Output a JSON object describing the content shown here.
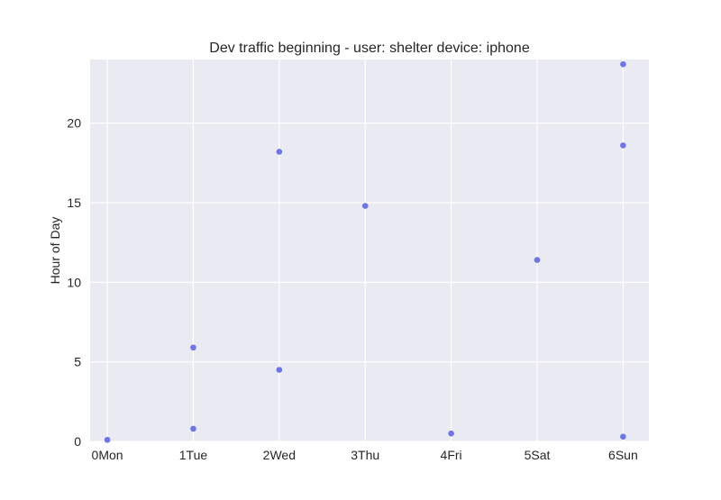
{
  "chart_data": {
    "type": "scatter",
    "title": "Dev traffic beginning - user: shelter device: iphone",
    "xlabel": "",
    "ylabel": "Hour of Day",
    "x_categories": [
      "0Mon",
      "1Tue",
      "2Wed",
      "3Thu",
      "4Fri",
      "5Sat",
      "6Sun"
    ],
    "xlim": [
      -0.2,
      6.3
    ],
    "ylim": [
      0,
      24
    ],
    "yticks": [
      0,
      5,
      10,
      15,
      20
    ],
    "grid": true,
    "background_color": "#eaeaf2",
    "grid_color": "#ffffff",
    "point_color": "#6e75e8",
    "points": [
      {
        "x": 0,
        "y": 0.1
      },
      {
        "x": 1,
        "y": 5.9
      },
      {
        "x": 1,
        "y": 0.8
      },
      {
        "x": 2,
        "y": 18.2
      },
      {
        "x": 2,
        "y": 4.5
      },
      {
        "x": 3,
        "y": 14.8
      },
      {
        "x": 4,
        "y": 0.5
      },
      {
        "x": 5,
        "y": 11.4
      },
      {
        "x": 6,
        "y": 23.7
      },
      {
        "x": 6,
        "y": 18.6
      },
      {
        "x": 6,
        "y": 0.3
      }
    ]
  }
}
